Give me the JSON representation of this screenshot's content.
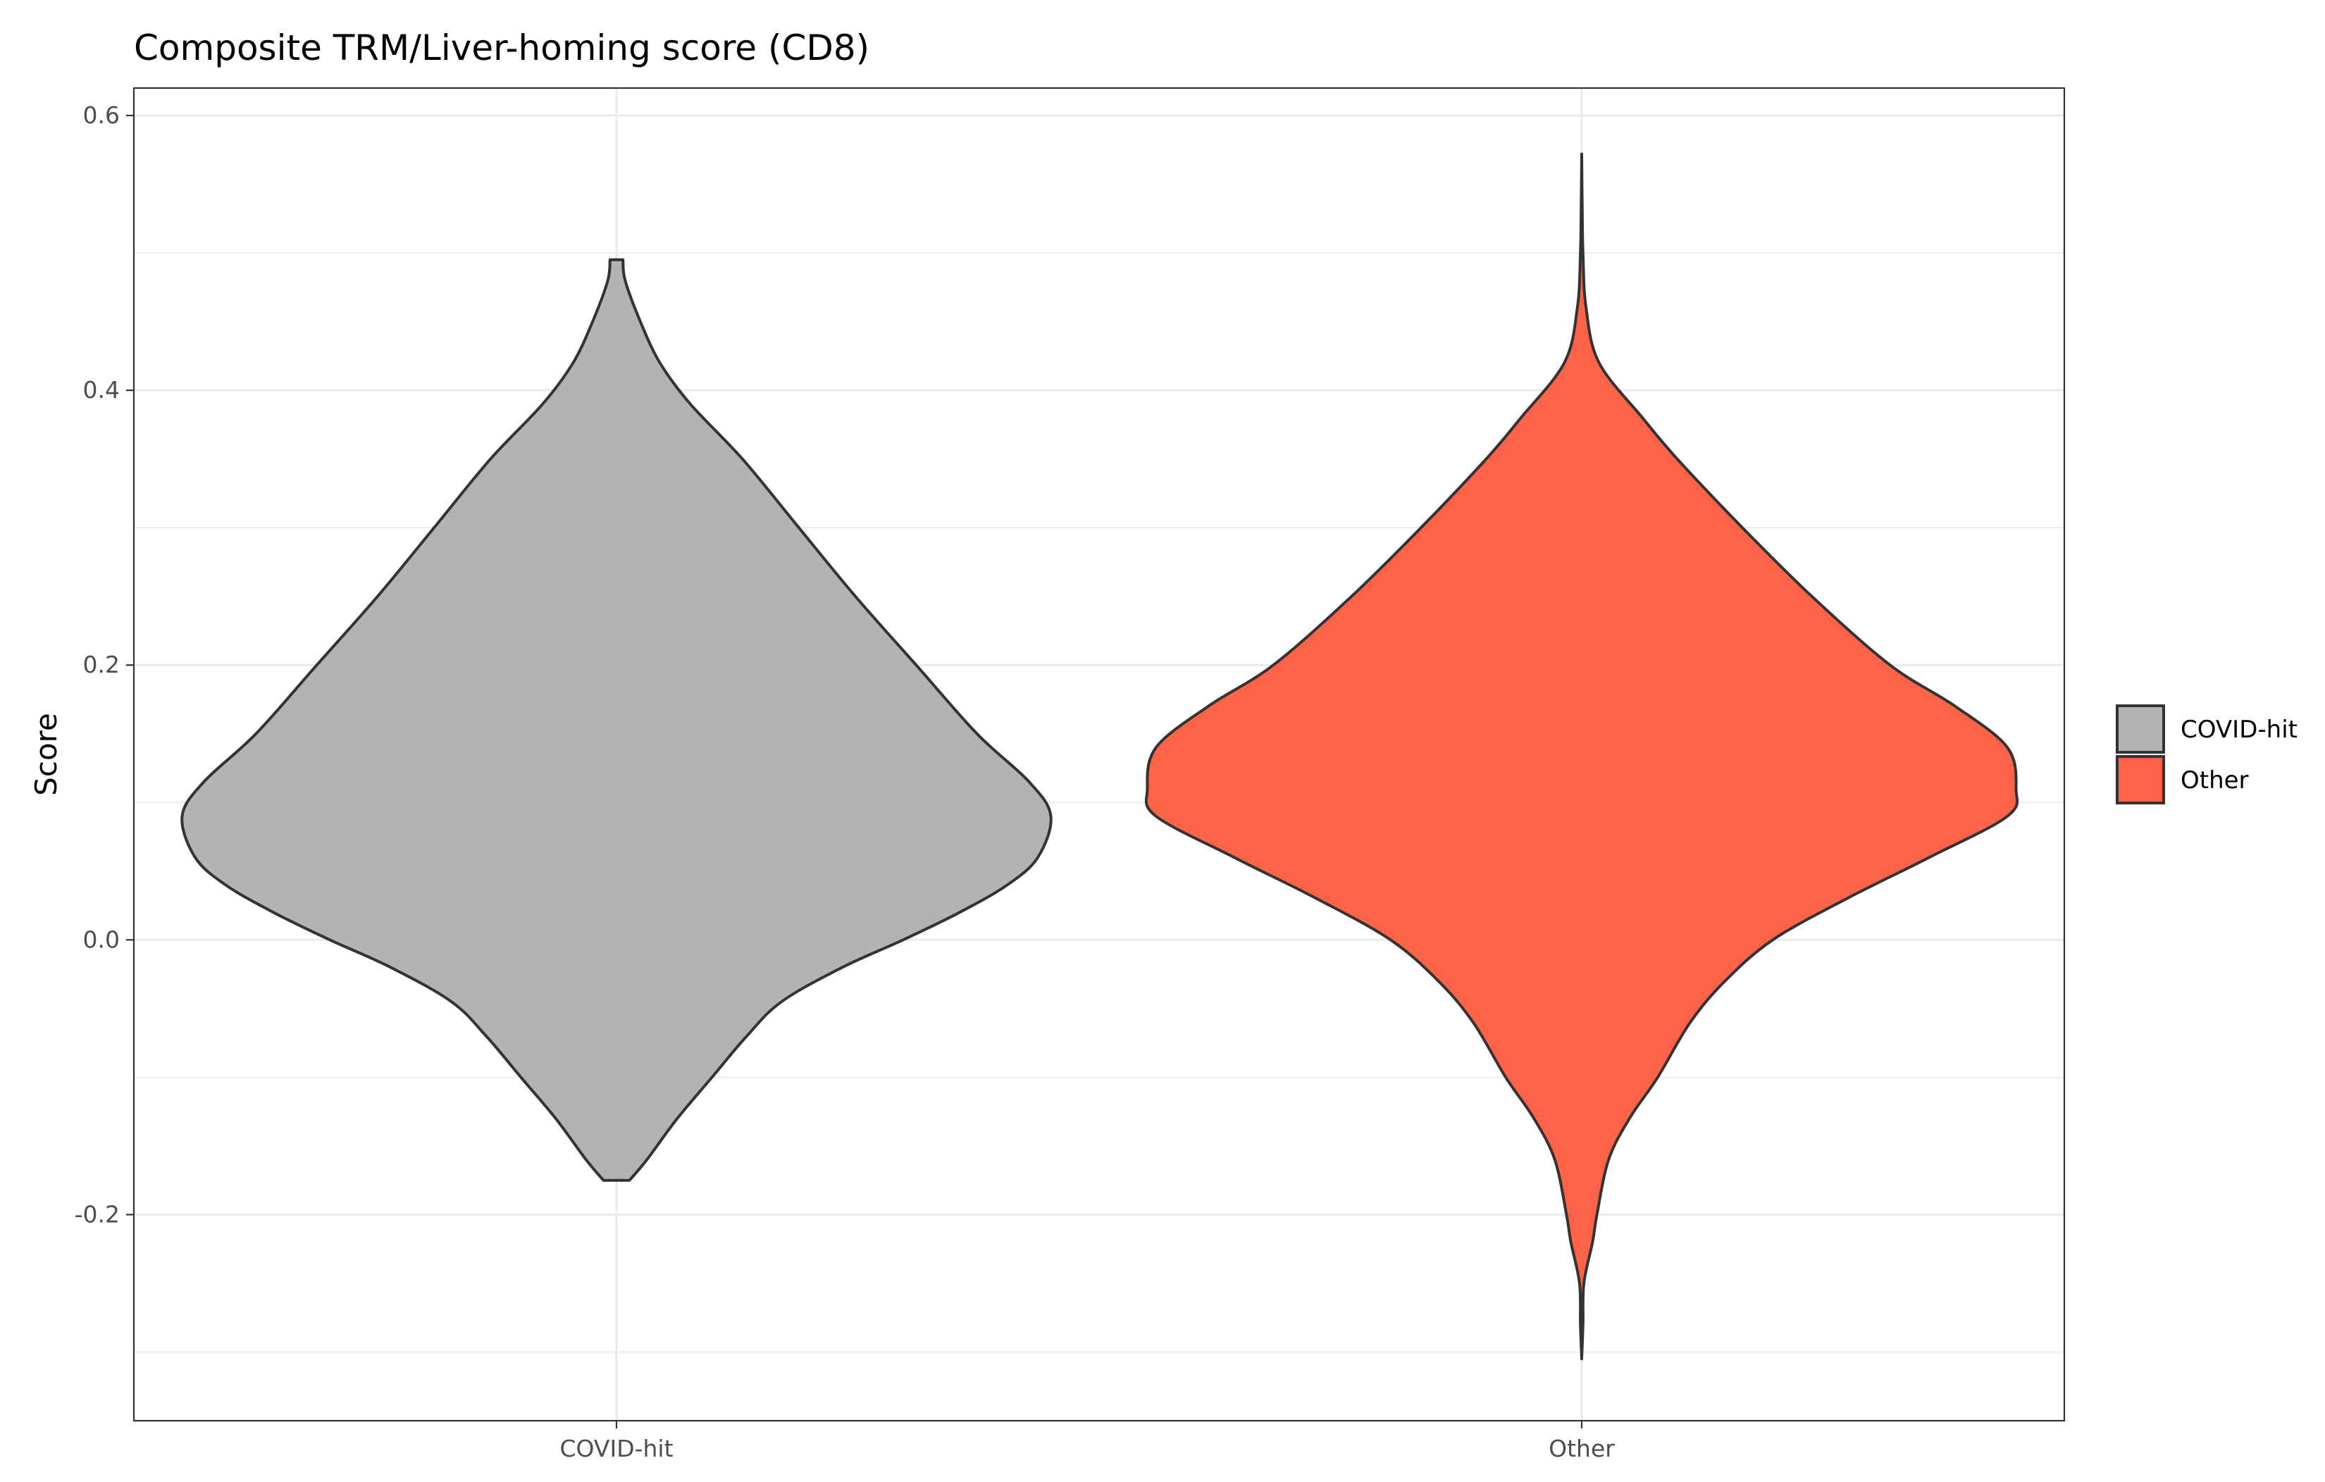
{
  "chart_data": {
    "type": "violin",
    "title": "Composite TRM/Liver-homing score (CD8)",
    "xlabel": "",
    "ylabel": "Score",
    "ylim": [
      -0.35,
      0.62
    ],
    "y_ticks": [
      -0.2,
      0.0,
      0.2,
      0.4,
      0.6
    ],
    "y_tick_labels": [
      "-0.2",
      "0.0",
      "0.2",
      "0.4",
      "0.6"
    ],
    "y_minor_ticks": [
      -0.3,
      -0.1,
      0.1,
      0.3,
      0.5
    ],
    "categories": [
      "COVID-hit",
      "Other"
    ],
    "grid": true,
    "legend": {
      "title": "",
      "placement": "right",
      "entries": [
        "COVID-hit",
        "Other"
      ]
    },
    "series": [
      {
        "name": "COVID-hit",
        "color": "#b3b3b3",
        "range": [
          -0.175,
          0.495
        ],
        "density_profile": [
          [
            -0.175,
            0.03
          ],
          [
            -0.16,
            0.07
          ],
          [
            -0.13,
            0.14
          ],
          [
            -0.1,
            0.22
          ],
          [
            -0.07,
            0.3
          ],
          [
            -0.045,
            0.38
          ],
          [
            -0.02,
            0.52
          ],
          [
            0.0,
            0.66
          ],
          [
            0.02,
            0.79
          ],
          [
            0.04,
            0.9
          ],
          [
            0.06,
            0.97
          ],
          [
            0.09,
            1.0
          ],
          [
            0.115,
            0.95
          ],
          [
            0.15,
            0.83
          ],
          [
            0.2,
            0.69
          ],
          [
            0.25,
            0.55
          ],
          [
            0.3,
            0.42
          ],
          [
            0.35,
            0.29
          ],
          [
            0.39,
            0.17
          ],
          [
            0.42,
            0.1
          ],
          [
            0.45,
            0.055
          ],
          [
            0.48,
            0.02
          ],
          [
            0.495,
            0.015
          ]
        ]
      },
      {
        "name": "Other",
        "color": "#ff6347",
        "range": [
          -0.305,
          0.572
        ],
        "density_profile": [
          [
            -0.305,
            0.0
          ],
          [
            -0.28,
            0.003
          ],
          [
            -0.25,
            0.005
          ],
          [
            -0.22,
            0.025
          ],
          [
            -0.2,
            0.035
          ],
          [
            -0.16,
            0.062
          ],
          [
            -0.13,
            0.11
          ],
          [
            -0.1,
            0.175
          ],
          [
            -0.06,
            0.25
          ],
          [
            -0.03,
            0.33
          ],
          [
            0.0,
            0.44
          ],
          [
            0.03,
            0.61
          ],
          [
            0.06,
            0.8
          ],
          [
            0.09,
            0.98
          ],
          [
            0.11,
            1.0
          ],
          [
            0.14,
            0.98
          ],
          [
            0.17,
            0.86
          ],
          [
            0.2,
            0.71
          ],
          [
            0.25,
            0.53
          ],
          [
            0.3,
            0.37
          ],
          [
            0.35,
            0.22
          ],
          [
            0.38,
            0.14
          ],
          [
            0.42,
            0.04
          ],
          [
            0.46,
            0.01
          ],
          [
            0.5,
            0.003
          ],
          [
            0.54,
            0.001
          ],
          [
            0.572,
            0.0
          ]
        ]
      }
    ]
  }
}
